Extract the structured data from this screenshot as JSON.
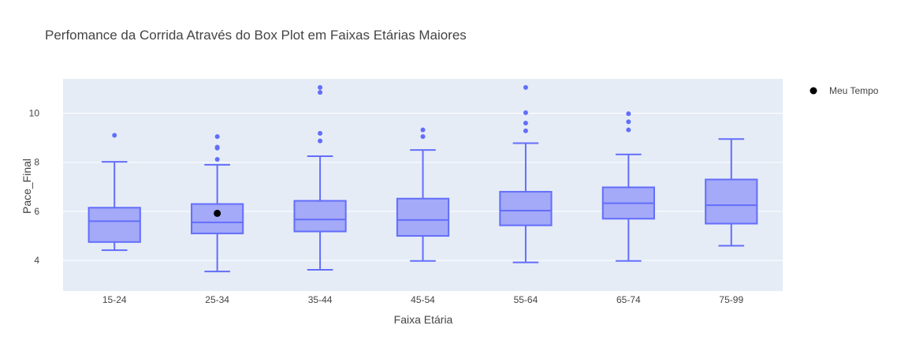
{
  "chart_data": {
    "type": "box",
    "title": "Perfomance da Corrida Através do Box Plot em Faixas Etárias Maiores",
    "xlabel": "Faixa Etária",
    "ylabel": "Pace_Final",
    "ylim": [
      2.75,
      11.4
    ],
    "yticks": [
      "4",
      "6",
      "8",
      "10"
    ],
    "grid": true,
    "legend_position": "top-right",
    "colors": {
      "box_line": "#636efa",
      "box_fill": "#a4a9f8",
      "plot_bg": "#e5ecf6",
      "grid": "#ffffff",
      "marker": "#000000"
    },
    "categories": [
      "15-24",
      "25-34",
      "35-44",
      "45-54",
      "55-64",
      "65-74",
      "75-99"
    ],
    "boxes": [
      {
        "category": "15-24",
        "lower_fence": 4.42,
        "q1": 4.75,
        "median": 5.6,
        "q3": 6.15,
        "upper_fence": 8.02,
        "outliers": [
          9.1
        ]
      },
      {
        "category": "25-34",
        "lower_fence": 3.55,
        "q1": 5.1,
        "median": 5.55,
        "q3": 6.3,
        "upper_fence": 7.9,
        "outliers": [
          8.12,
          8.58,
          8.62,
          9.05
        ]
      },
      {
        "category": "35-44",
        "lower_fence": 3.62,
        "q1": 5.18,
        "median": 5.67,
        "q3": 6.43,
        "upper_fence": 8.25,
        "outliers": [
          8.87,
          9.18,
          10.85,
          11.05
        ]
      },
      {
        "category": "45-54",
        "lower_fence": 3.98,
        "q1": 5.0,
        "median": 5.65,
        "q3": 6.52,
        "upper_fence": 8.5,
        "outliers": [
          9.05,
          9.32
        ]
      },
      {
        "category": "55-64",
        "lower_fence": 3.92,
        "q1": 5.43,
        "median": 6.03,
        "q3": 6.8,
        "upper_fence": 8.78,
        "outliers": [
          9.28,
          9.6,
          10.02,
          11.05
        ]
      },
      {
        "category": "65-74",
        "lower_fence": 3.98,
        "q1": 5.7,
        "median": 6.33,
        "q3": 6.98,
        "upper_fence": 8.32,
        "outliers": [
          9.32,
          9.65,
          9.98
        ]
      },
      {
        "category": "75-99",
        "lower_fence": 4.6,
        "q1": 5.5,
        "median": 6.25,
        "q3": 7.3,
        "upper_fence": 8.95,
        "outliers": []
      }
    ],
    "markers": [
      {
        "name": "Meu Tempo",
        "category": "25-34",
        "value": 5.92
      }
    ],
    "legend": [
      "Meu Tempo"
    ]
  }
}
